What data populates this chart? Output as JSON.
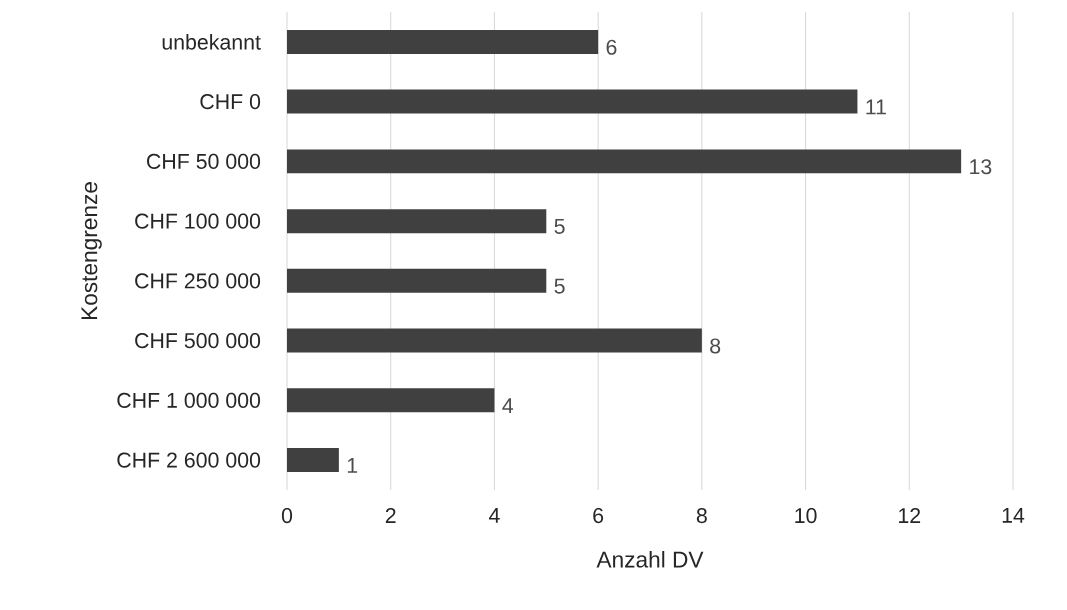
{
  "chart_data": {
    "type": "bar",
    "orientation": "horizontal",
    "xlabel": "Anzahl DV",
    "ylabel": "Kostengrenze",
    "categories": [
      "unbekannt",
      "CHF 0",
      "CHF 50 000",
      "CHF 100 000",
      "CHF 250 000",
      "CHF 500 000",
      "CHF 1 000 000",
      "CHF 2 600 000"
    ],
    "values": [
      6,
      11,
      13,
      5,
      5,
      8,
      4,
      1
    ],
    "color": "#404040",
    "xlim": [
      0,
      14
    ],
    "xticks": [
      0,
      2,
      4,
      6,
      8,
      10,
      12,
      14
    ],
    "grid": "x",
    "data_labels": true
  }
}
